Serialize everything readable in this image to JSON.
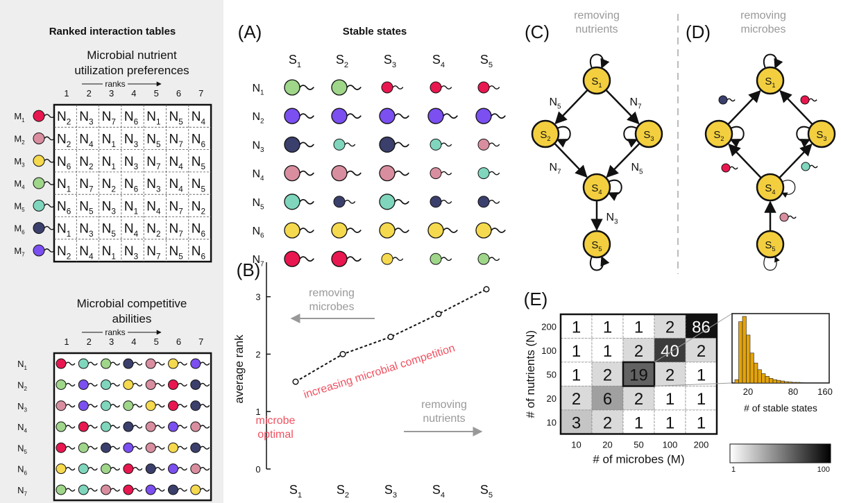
{
  "left_panel": {
    "title": "Ranked interaction tables",
    "pref_title": [
      "Microbial nutrient",
      "utilization preferences"
    ],
    "comp_title": [
      "Microbial competitive",
      "abilities"
    ],
    "ranks_label": "ranks",
    "rank_numbers": [
      "1",
      "2",
      "3",
      "4",
      "5",
      "6",
      "7"
    ],
    "microbes": [
      "M1",
      "M2",
      "M3",
      "M4",
      "M5",
      "M6",
      "M7"
    ],
    "nutrients": [
      "N1",
      "N2",
      "N3",
      "N4",
      "N5",
      "N6",
      "N7"
    ],
    "pref_table": [
      [
        2,
        3,
        7,
        6,
        1,
        5,
        4
      ],
      [
        2,
        4,
        1,
        3,
        5,
        7,
        6
      ],
      [
        6,
        2,
        1,
        3,
        7,
        4,
        5
      ],
      [
        1,
        7,
        2,
        6,
        3,
        4,
        5
      ],
      [
        6,
        5,
        3,
        1,
        4,
        7,
        2
      ],
      [
        1,
        3,
        5,
        4,
        2,
        7,
        6
      ],
      [
        2,
        4,
        1,
        3,
        7,
        5,
        6
      ]
    ],
    "comp_table": [
      [
        1,
        5,
        4,
        6,
        2,
        3,
        7
      ],
      [
        4,
        7,
        5,
        3,
        2,
        1,
        6
      ],
      [
        2,
        7,
        5,
        4,
        3,
        1,
        6
      ],
      [
        4,
        1,
        5,
        6,
        2,
        7,
        2
      ],
      [
        1,
        4,
        6,
        7,
        2,
        3,
        6
      ],
      [
        3,
        5,
        4,
        1,
        6,
        7,
        2
      ],
      [
        4,
        5,
        2,
        1,
        7,
        6,
        3
      ]
    ]
  },
  "colors": {
    "microbes": [
      "#e8174f",
      "#d98ea0",
      "#f5d94e",
      "#9fd68a",
      "#7fd6bd",
      "#3b3f6b",
      "#7b4ff0"
    ],
    "state": "#f3cf3f",
    "panel_bg": "#eeeeee",
    "red_text": "#f05060",
    "gray_text": "#999999"
  },
  "panel_a": {
    "label": "(A)",
    "title": "Stable states",
    "states": [
      "S1",
      "S2",
      "S3",
      "S4",
      "S5"
    ],
    "nutrients": [
      "N1",
      "N2",
      "N3",
      "N4",
      "N5",
      "N6",
      "N7"
    ],
    "grid": [
      [
        4,
        4,
        1,
        1,
        1
      ],
      [
        7,
        7,
        7,
        7,
        7
      ],
      [
        6,
        5,
        6,
        5,
        2
      ],
      [
        2,
        2,
        2,
        2,
        5
      ],
      [
        5,
        6,
        5,
        6,
        6
      ],
      [
        3,
        3,
        3,
        3,
        3
      ],
      [
        1,
        1,
        3,
        4,
        4
      ]
    ],
    "big": [
      [
        1,
        1,
        0,
        0,
        0
      ],
      [
        1,
        1,
        1,
        1,
        1
      ],
      [
        1,
        0,
        1,
        0,
        0
      ],
      [
        1,
        1,
        1,
        0,
        0
      ],
      [
        1,
        0,
        1,
        0,
        0
      ],
      [
        1,
        1,
        1,
        1,
        1
      ],
      [
        1,
        1,
        0,
        0,
        0
      ]
    ]
  },
  "panel_b": {
    "label": "(B)",
    "ylabel": "average rank",
    "annot_top": [
      "removing",
      "microbes"
    ],
    "annot_red": "increasing microbial competition",
    "annot_bottom": [
      "removing",
      "nutrients"
    ],
    "annot_optimal": [
      "microbe",
      "optimal"
    ]
  },
  "chart_data": {
    "type": "line",
    "categories": [
      "S1",
      "S2",
      "S3",
      "S4",
      "S5"
    ],
    "values": [
      1.52,
      2.0,
      2.3,
      2.7,
      3.13
    ],
    "ylabel": "average rank",
    "ylim": [
      0,
      3.6
    ],
    "yticks": [
      "0",
      "1",
      "2",
      "3"
    ]
  },
  "panel_c": {
    "label": "(C)",
    "caption": [
      "removing",
      "nutrients"
    ],
    "edges": [
      "N5",
      "N7",
      "N7",
      "N5",
      "N3"
    ]
  },
  "panel_d": {
    "label": "(D)",
    "caption": [
      "removing",
      "microbes"
    ]
  },
  "panel_e": {
    "label": "(E)",
    "ylabel": "# of nutrients (N)",
    "xlabel": "# of microbes (M)",
    "row_labels": [
      "200",
      "100",
      "50",
      "20",
      "10"
    ],
    "col_labels": [
      "10",
      "20",
      "50",
      "100",
      "200"
    ],
    "cells": [
      [
        1,
        1,
        1,
        2,
        86
      ],
      [
        1,
        1,
        2,
        40,
        2
      ],
      [
        1,
        2,
        19,
        2,
        1
      ],
      [
        2,
        6,
        2,
        1,
        1
      ],
      [
        3,
        2,
        1,
        1,
        1
      ]
    ],
    "hist_xlabel": "# of stable states",
    "hist_ticks": [
      "20",
      "80",
      "160"
    ],
    "cbar_min": "1",
    "cbar_max": "100"
  }
}
